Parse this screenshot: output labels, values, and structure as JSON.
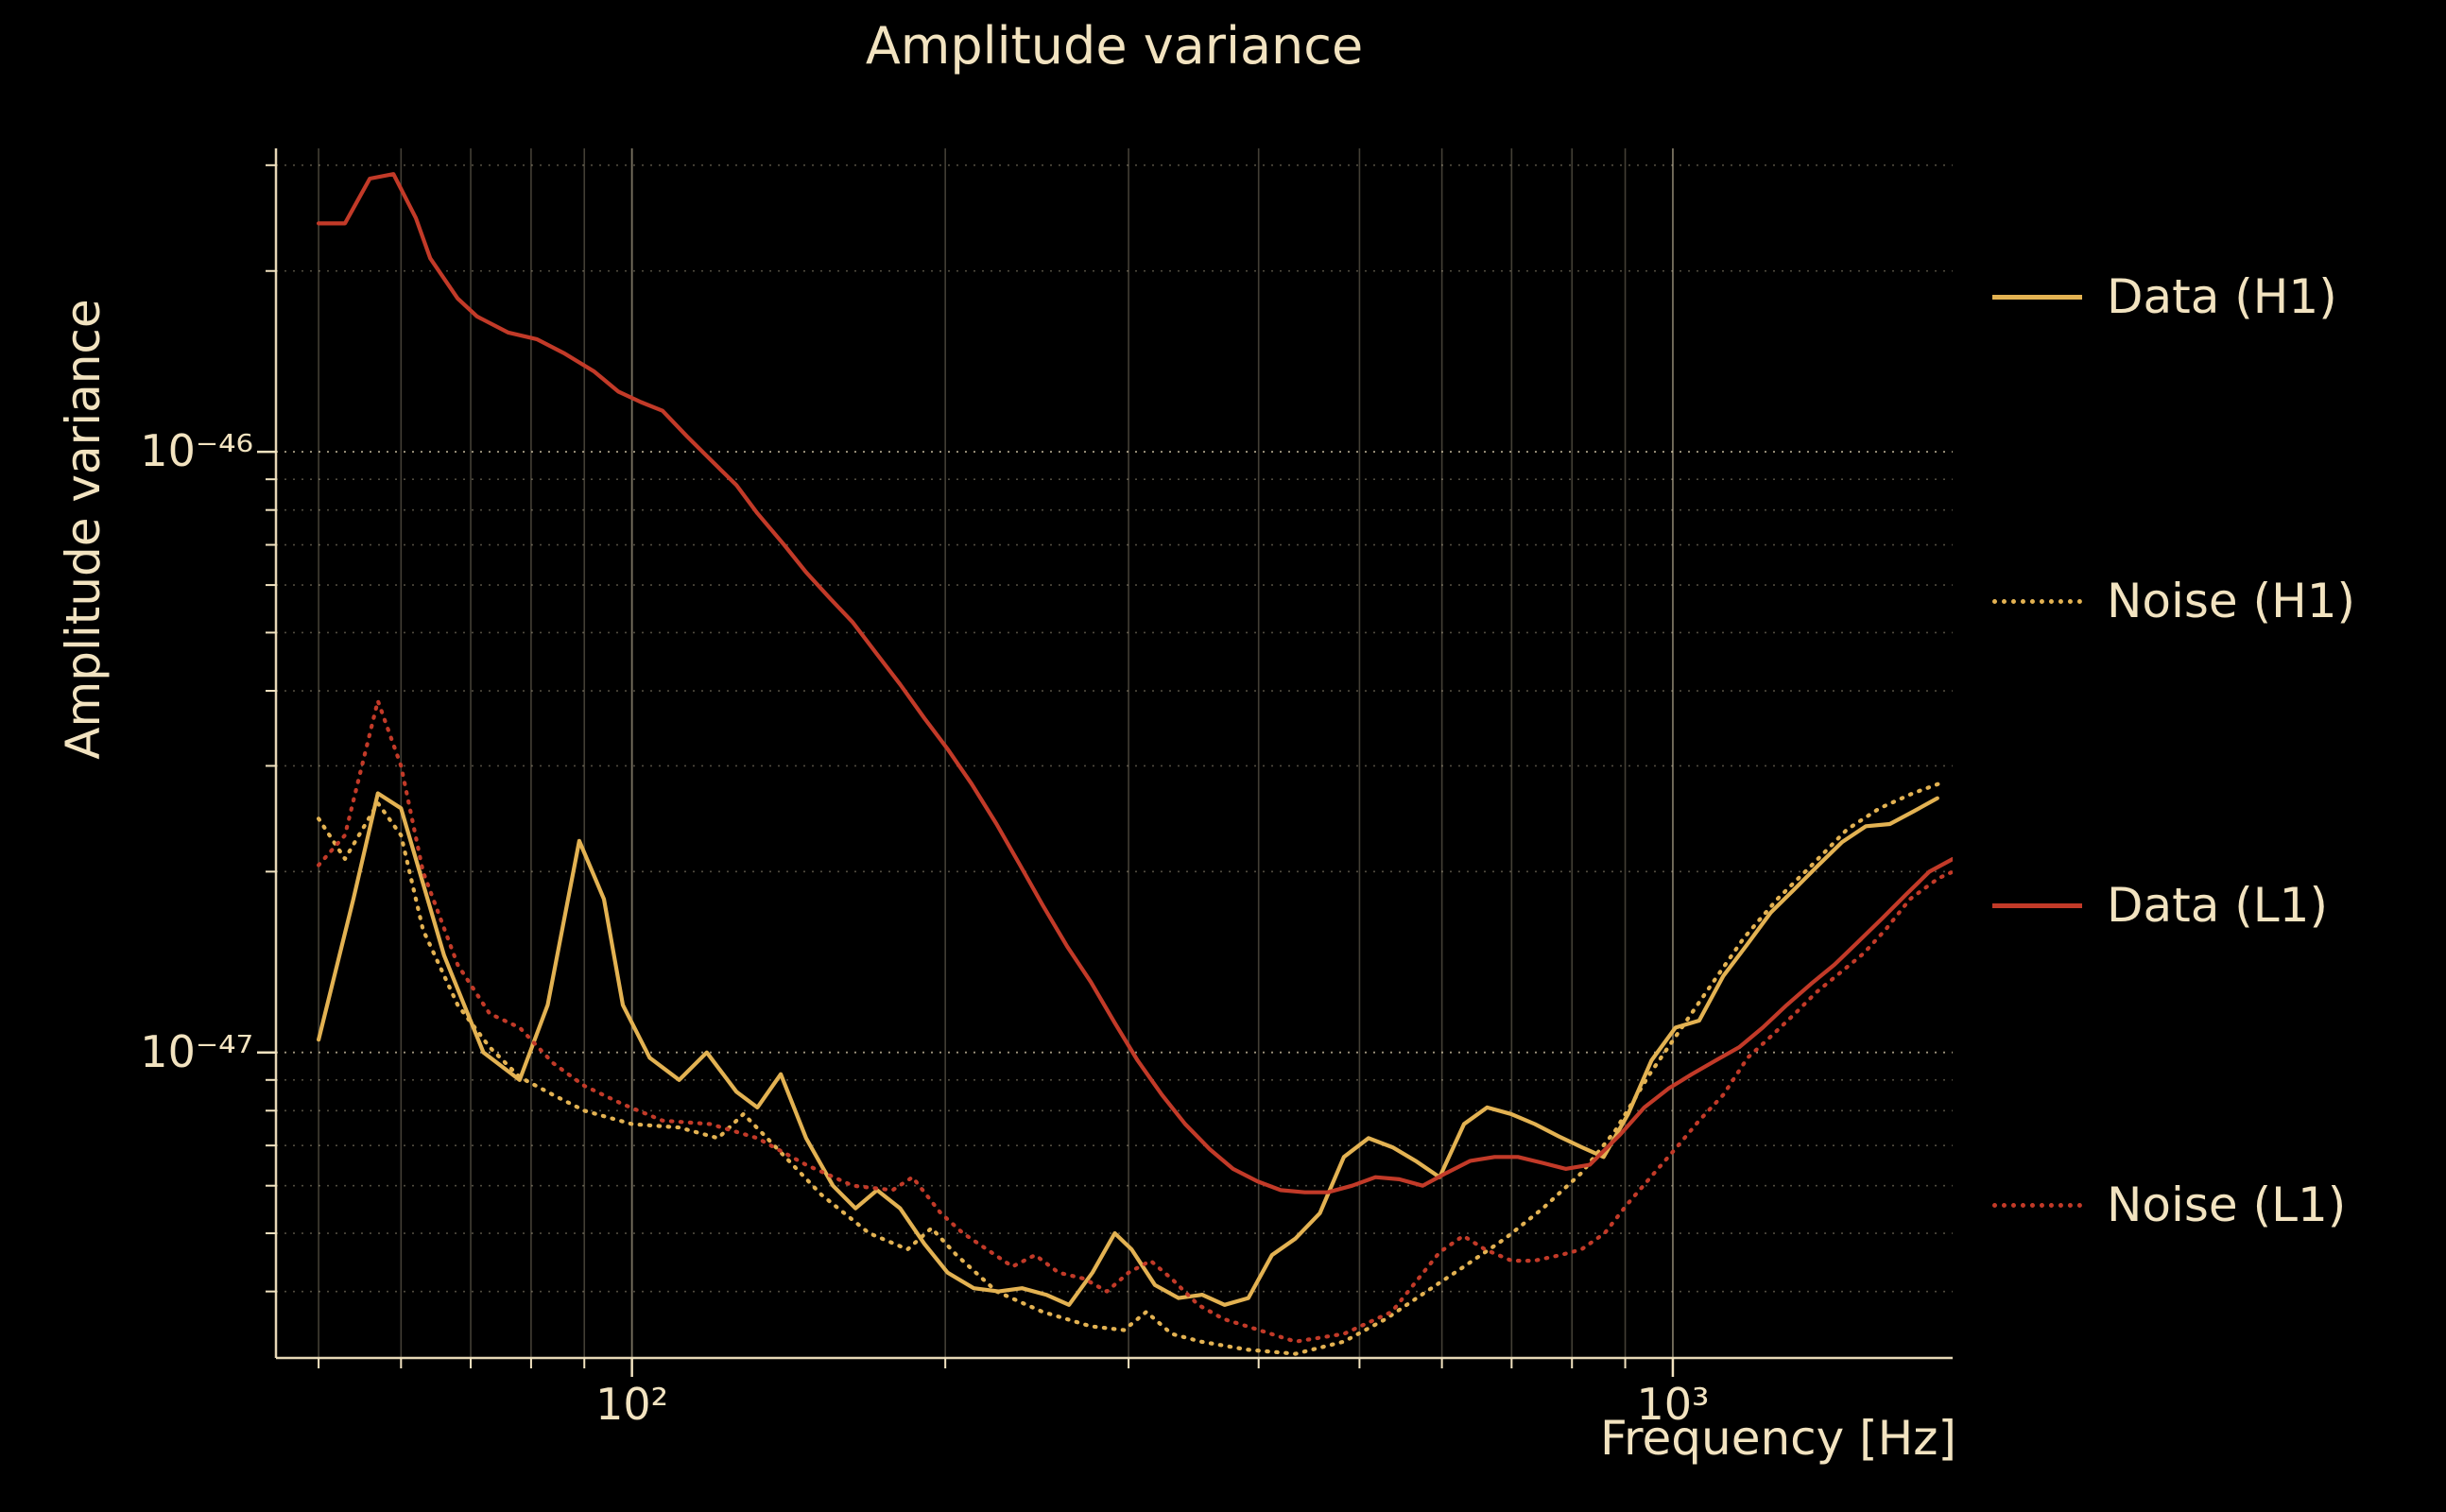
{
  "chart_data": {
    "type": "line",
    "title": "Amplitude variance",
    "xlabel": "Frequency [Hz]",
    "ylabel": "Amplitude variance",
    "x_scale": "log",
    "y_scale": "log",
    "xlim": [
      45.5,
      1857
    ],
    "ylim": [
      3.1e-48,
      3.2e-46
    ],
    "grid": true,
    "legend_position": "outside-right",
    "background_color": "#000000",
    "text_color": "#f2e3c0",
    "grid_color": "#f2e3c0",
    "x_ticks": [
      {
        "value": 100,
        "label": "10²"
      },
      {
        "value": 1000,
        "label": "10³"
      }
    ],
    "y_ticks": [
      {
        "value": 1e-46,
        "label": "10⁻⁴⁶"
      },
      {
        "value": 1e-47,
        "label": "10⁻⁴⁷"
      }
    ],
    "x_minor_ticks": [
      50,
      60,
      70,
      80,
      90,
      200,
      300,
      400,
      500,
      600,
      700,
      800,
      900
    ],
    "y_minor_ticks": [
      4e-48,
      5e-48,
      6e-48,
      7e-48,
      8e-48,
      9e-48,
      2e-47,
      3e-47,
      4e-47,
      5e-47,
      6e-47,
      7e-47,
      8e-47,
      9e-47,
      2e-46,
      3e-46
    ],
    "series": [
      {
        "name": "Data (H1)",
        "color": "#e3b252",
        "style": "solid",
        "points": [
          [
            50,
            1.05e-47
          ],
          [
            54,
            1.8e-47
          ],
          [
            57,
            2.7e-47
          ],
          [
            60,
            2.55e-47
          ],
          [
            66,
            1.45e-47
          ],
          [
            72,
            1e-47
          ],
          [
            78,
            9e-48
          ],
          [
            83,
            1.2e-47
          ],
          [
            89,
            2.25e-47
          ],
          [
            94,
            1.8e-47
          ],
          [
            98,
            1.2e-47
          ],
          [
            104,
            9.8e-48
          ],
          [
            111,
            9e-48
          ],
          [
            118,
            1e-47
          ],
          [
            126,
            8.6e-48
          ],
          [
            132,
            8.1e-48
          ],
          [
            139,
            9.2e-48
          ],
          [
            147,
            7.2e-48
          ],
          [
            156,
            6e-48
          ],
          [
            164,
            5.5e-48
          ],
          [
            172,
            5.9e-48
          ],
          [
            181,
            5.5e-48
          ],
          [
            191,
            4.8e-48
          ],
          [
            201,
            4.3e-48
          ],
          [
            213,
            4.05e-48
          ],
          [
            225,
            4e-48
          ],
          [
            237,
            4.05e-48
          ],
          [
            250,
            3.95e-48
          ],
          [
            263,
            3.8e-48
          ],
          [
            277,
            4.3e-48
          ],
          [
            291,
            5e-48
          ],
          [
            302,
            4.7e-48
          ],
          [
            318,
            4.1e-48
          ],
          [
            335,
            3.9e-48
          ],
          [
            353,
            3.95e-48
          ],
          [
            371,
            3.8e-48
          ],
          [
            391,
            3.9e-48
          ],
          [
            412,
            4.6e-48
          ],
          [
            434,
            4.9e-48
          ],
          [
            458,
            5.4e-48
          ],
          [
            483,
            6.7e-48
          ],
          [
            510,
            7.2e-48
          ],
          [
            538,
            6.95e-48
          ],
          [
            566,
            6.6e-48
          ],
          [
            597,
            6.2e-48
          ],
          [
            630,
            7.6e-48
          ],
          [
            663,
            8.1e-48
          ],
          [
            699,
            7.9e-48
          ],
          [
            737,
            7.6e-48
          ],
          [
            777,
            7.25e-48
          ],
          [
            818,
            6.95e-48
          ],
          [
            858,
            6.7e-48
          ],
          [
            906,
            7.9e-48
          ],
          [
            954,
            9.7e-48
          ],
          [
            1006,
            1.1e-47
          ],
          [
            1060,
            1.13e-47
          ],
          [
            1118,
            1.34e-47
          ],
          [
            1178,
            1.51e-47
          ],
          [
            1242,
            1.71e-47
          ],
          [
            1309,
            1.87e-47
          ],
          [
            1380,
            2.05e-47
          ],
          [
            1454,
            2.24e-47
          ],
          [
            1533,
            2.38e-47
          ],
          [
            1616,
            2.4e-47
          ],
          [
            1703,
            2.52e-47
          ],
          [
            1795,
            2.65e-47
          ]
        ]
      },
      {
        "name": "Noise (H1)",
        "color": "#e3b252",
        "style": "dotted",
        "points": [
          [
            50,
            2.45e-47
          ],
          [
            53,
            2.1e-47
          ],
          [
            57,
            2.6e-47
          ],
          [
            60,
            2.3e-47
          ],
          [
            63,
            1.6e-47
          ],
          [
            68,
            1.2e-47
          ],
          [
            73,
            1.02e-47
          ],
          [
            78,
            9.1e-48
          ],
          [
            84,
            8.5e-48
          ],
          [
            90,
            8e-48
          ],
          [
            100,
            7.6e-48
          ],
          [
            111,
            7.5e-48
          ],
          [
            121,
            7.2e-48
          ],
          [
            128,
            7.9e-48
          ],
          [
            137,
            7e-48
          ],
          [
            152,
            5.8e-48
          ],
          [
            169,
            5e-48
          ],
          [
            184,
            4.7e-48
          ],
          [
            194,
            5.1e-48
          ],
          [
            205,
            4.6e-48
          ],
          [
            224,
            4e-48
          ],
          [
            248,
            3.7e-48
          ],
          [
            276,
            3.5e-48
          ],
          [
            297,
            3.45e-48
          ],
          [
            312,
            3.7e-48
          ],
          [
            330,
            3.4e-48
          ],
          [
            352,
            3.3e-48
          ],
          [
            390,
            3.2e-48
          ],
          [
            434,
            3.15e-48
          ],
          [
            483,
            3.3e-48
          ],
          [
            530,
            3.6e-48
          ],
          [
            580,
            4e-48
          ],
          [
            630,
            4.4e-48
          ],
          [
            690,
            4.9e-48
          ],
          [
            750,
            5.5e-48
          ],
          [
            817,
            6.3e-48
          ],
          [
            880,
            7.4e-48
          ],
          [
            950,
            9.2e-48
          ],
          [
            1020,
            1.1e-47
          ],
          [
            1090,
            1.3e-47
          ],
          [
            1170,
            1.55e-47
          ],
          [
            1260,
            1.8e-47
          ],
          [
            1360,
            2.05e-47
          ],
          [
            1470,
            2.35e-47
          ],
          [
            1580,
            2.55e-47
          ],
          [
            1700,
            2.7e-47
          ],
          [
            1800,
            2.8e-47
          ]
        ]
      },
      {
        "name": "Data (L1)",
        "color": "#c23a28",
        "style": "solid",
        "points": [
          [
            50,
            2.4e-46
          ],
          [
            53,
            2.4e-46
          ],
          [
            56,
            2.85e-46
          ],
          [
            59,
            2.9e-46
          ],
          [
            62,
            2.45e-46
          ],
          [
            64,
            2.1e-46
          ],
          [
            68,
            1.8e-46
          ],
          [
            71,
            1.68e-46
          ],
          [
            76,
            1.58e-46
          ],
          [
            81,
            1.54e-46
          ],
          [
            86,
            1.46e-46
          ],
          [
            92,
            1.36e-46
          ],
          [
            97,
            1.26e-46
          ],
          [
            102,
            1.21e-46
          ],
          [
            107,
            1.17e-46
          ],
          [
            113,
            1.06e-46
          ],
          [
            119,
            9.7e-47
          ],
          [
            126,
            8.8e-47
          ],
          [
            132,
            7.9e-47
          ],
          [
            140,
            7e-47
          ],
          [
            147,
            6.3e-47
          ],
          [
            155,
            5.7e-47
          ],
          [
            163,
            5.2e-47
          ],
          [
            172,
            4.6e-47
          ],
          [
            181,
            4.1e-47
          ],
          [
            191,
            3.6e-47
          ],
          [
            201,
            3.2e-47
          ],
          [
            212,
            2.8e-47
          ],
          [
            224,
            2.4e-47
          ],
          [
            236,
            2.05e-47
          ],
          [
            248,
            1.76e-47
          ],
          [
            262,
            1.5e-47
          ],
          [
            276,
            1.31e-47
          ],
          [
            291,
            1.12e-47
          ],
          [
            306,
            9.7e-48
          ],
          [
            323,
            8.5e-48
          ],
          [
            340,
            7.6e-48
          ],
          [
            359,
            6.9e-48
          ],
          [
            378,
            6.4e-48
          ],
          [
            399,
            6.1e-48
          ],
          [
            420,
            5.9e-48
          ],
          [
            443,
            5.85e-48
          ],
          [
            466,
            5.85e-48
          ],
          [
            492,
            6e-48
          ],
          [
            518,
            6.2e-48
          ],
          [
            546,
            6.15e-48
          ],
          [
            575,
            6e-48
          ],
          [
            606,
            6.3e-48
          ],
          [
            639,
            6.6e-48
          ],
          [
            674,
            6.7e-48
          ],
          [
            710,
            6.7e-48
          ],
          [
            749,
            6.55e-48
          ],
          [
            789,
            6.4e-48
          ],
          [
            832,
            6.5e-48
          ],
          [
            890,
            7.3e-48
          ],
          [
            939,
            8.1e-48
          ],
          [
            990,
            8.7e-48
          ],
          [
            1043,
            9.2e-48
          ],
          [
            1100,
            9.7e-48
          ],
          [
            1158,
            1.02e-47
          ],
          [
            1220,
            1.1e-47
          ],
          [
            1287,
            1.2e-47
          ],
          [
            1357,
            1.3e-47
          ],
          [
            1430,
            1.4e-47
          ],
          [
            1508,
            1.53e-47
          ],
          [
            1588,
            1.67e-47
          ],
          [
            1674,
            1.83e-47
          ],
          [
            1764,
            2e-47
          ],
          [
            1858,
            2.1e-47
          ]
        ]
      },
      {
        "name": "Noise (L1)",
        "color": "#c23a28",
        "style": "dotted",
        "points": [
          [
            50,
            2.05e-47
          ],
          [
            53,
            2.3e-47
          ],
          [
            57,
            3.85e-47
          ],
          [
            60,
            3e-47
          ],
          [
            63,
            2e-47
          ],
          [
            68,
            1.4e-47
          ],
          [
            73,
            1.16e-47
          ],
          [
            78,
            1.1e-47
          ],
          [
            84,
            9.6e-48
          ],
          [
            90,
            8.8e-48
          ],
          [
            98,
            8.2e-48
          ],
          [
            107,
            7.7e-48
          ],
          [
            119,
            7.6e-48
          ],
          [
            132,
            7.2e-48
          ],
          [
            147,
            6.5e-48
          ],
          [
            163,
            6e-48
          ],
          [
            178,
            5.9e-48
          ],
          [
            186,
            6.2e-48
          ],
          [
            198,
            5.4e-48
          ],
          [
            208,
            5e-48
          ],
          [
            232,
            4.4e-48
          ],
          [
            244,
            4.6e-48
          ],
          [
            257,
            4.3e-48
          ],
          [
            272,
            4.2e-48
          ],
          [
            286,
            4e-48
          ],
          [
            300,
            4.3e-48
          ],
          [
            315,
            4.5e-48
          ],
          [
            330,
            4.2e-48
          ],
          [
            350,
            3.8e-48
          ],
          [
            370,
            3.6e-48
          ],
          [
            390,
            3.5e-48
          ],
          [
            434,
            3.3e-48
          ],
          [
            483,
            3.4e-48
          ],
          [
            537,
            3.7e-48
          ],
          [
            597,
            4.65e-48
          ],
          [
            629,
            4.95e-48
          ],
          [
            660,
            4.7e-48
          ],
          [
            700,
            4.5e-48
          ],
          [
            736,
            4.5e-48
          ],
          [
            780,
            4.6e-48
          ],
          [
            817,
            4.7e-48
          ],
          [
            860,
            5e-48
          ],
          [
            905,
            5.6e-48
          ],
          [
            960,
            6.3e-48
          ],
          [
            1005,
            6.9e-48
          ],
          [
            1060,
            7.7e-48
          ],
          [
            1118,
            8.5e-48
          ],
          [
            1180,
            9.8e-48
          ],
          [
            1240,
            1.06e-47
          ],
          [
            1310,
            1.16e-47
          ],
          [
            1374,
            1.26e-47
          ],
          [
            1450,
            1.36e-47
          ],
          [
            1524,
            1.46e-47
          ],
          [
            1600,
            1.6e-47
          ],
          [
            1690,
            1.8e-47
          ],
          [
            1800,
            1.95e-47
          ],
          [
            1858,
            2e-47
          ]
        ]
      }
    ]
  }
}
